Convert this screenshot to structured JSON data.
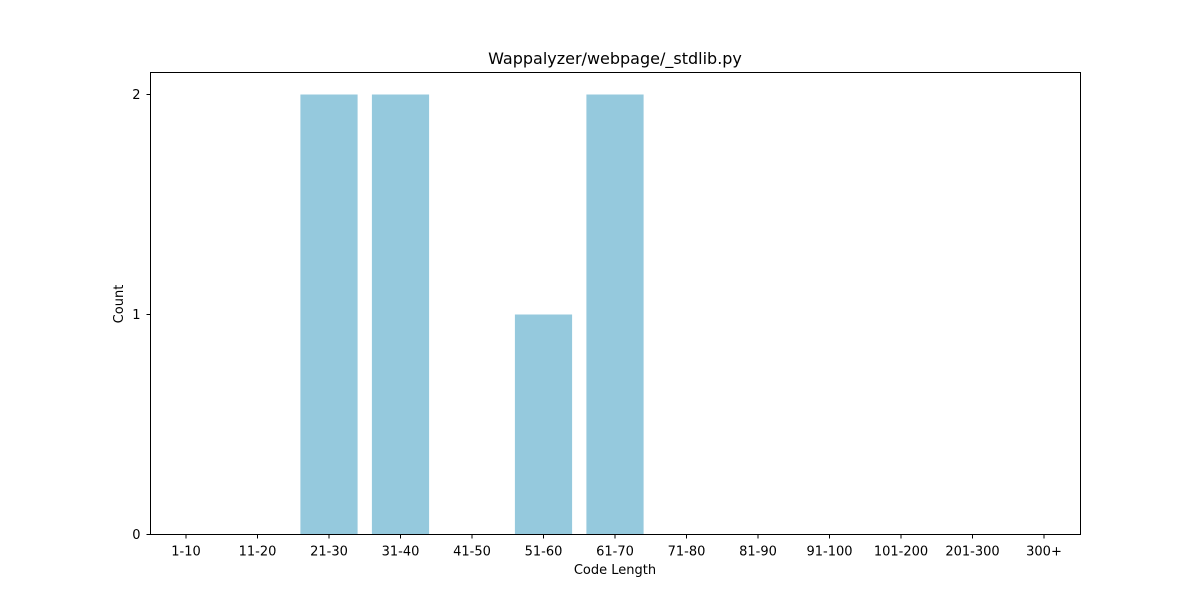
{
  "chart_data": {
    "type": "bar",
    "title": "Wappalyzer/webpage/_stdlib.py",
    "xlabel": "Code Length",
    "ylabel": "Count",
    "categories": [
      "1-10",
      "11-20",
      "21-30",
      "31-40",
      "41-50",
      "51-60",
      "61-70",
      "71-80",
      "81-90",
      "91-100",
      "101-200",
      "201-300",
      "300+"
    ],
    "values": [
      0,
      0,
      2,
      2,
      0,
      1,
      2,
      0,
      0,
      0,
      0,
      0,
      0
    ],
    "yticks": [
      "0",
      "1",
      "2"
    ],
    "ylim": [
      0,
      2.1
    ],
    "bar_color": "#95c9dd",
    "grid": false,
    "legend": "none"
  }
}
